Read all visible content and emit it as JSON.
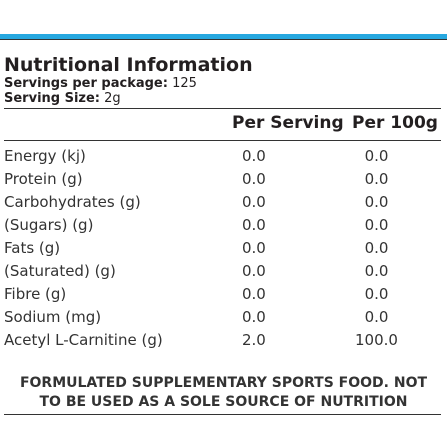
{
  "title": "Nutritional Information",
  "servings_label": "Servings per package:",
  "servings_value": "125",
  "serving_size_label": "Serving Size:",
  "serving_size_value": "2g",
  "columns": {
    "per_serving": "Per Serving",
    "per_100g": "Per 100g"
  },
  "rows": [
    {
      "name": "Energy (kj)",
      "per_serving": "0.0",
      "per_100g": "0.0"
    },
    {
      "name": "Protein (g)",
      "per_serving": "0.0",
      "per_100g": "0.0"
    },
    {
      "name": "Carbohydrates (g)",
      "per_serving": "0.0",
      "per_100g": "0.0"
    },
    {
      "name": "(Sugars) (g)",
      "per_serving": "0.0",
      "per_100g": "0.0"
    },
    {
      "name": "Fats (g)",
      "per_serving": "0.0",
      "per_100g": "0.0"
    },
    {
      "name": "(Saturated) (g)",
      "per_serving": "0.0",
      "per_100g": "0.0"
    },
    {
      "name": "Fibre (g)",
      "per_serving": "0.0",
      "per_100g": "0.0"
    },
    {
      "name": "Sodium (mg)",
      "per_serving": "0.0",
      "per_100g": "0.0"
    },
    {
      "name": "Acetyl L-Carnitine (g)",
      "per_serving": "2.0",
      "per_100g": "100.0"
    }
  ],
  "footer_line1": "FORMULATED SUPPLEMENTARY SPORTS FOOD. NOT",
  "footer_line2": "TO BE USED AS A SOLE SOURCE OF NUTRITION",
  "colors": {
    "accent_band": "#27a8e0",
    "text": "#231f20"
  }
}
